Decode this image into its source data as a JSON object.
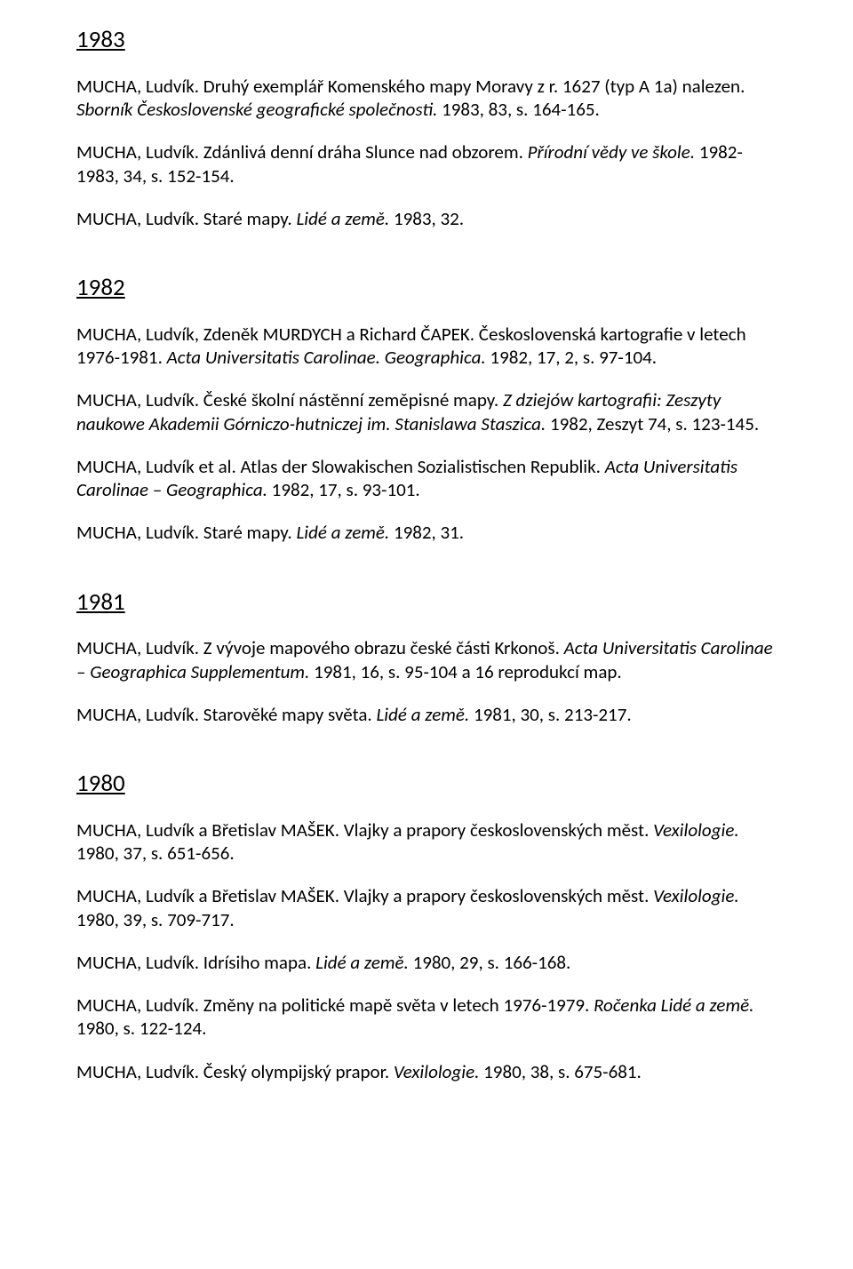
{
  "sections": [
    {
      "year": "1983",
      "entries": [
        {
          "plain1": "MUCHA, Ludvík. Druhý exemplář Komenského mapy Moravy z r. 1627 (typ A 1a) nalezen. ",
          "italic1": "Sborník Československé geografické společnosti.",
          "plain2": " 1983, 83, s. 164-165."
        },
        {
          "plain1": "MUCHA, Ludvík. Zdánlivá denní dráha Slunce nad obzorem. ",
          "italic1": "Přírodní vědy ve škole.",
          "plain2": " 1982-1983, 34, s. 152-154."
        },
        {
          "plain1": "MUCHA, Ludvík. Staré mapy. ",
          "italic1": "Lidé a země.",
          "plain2": " 1983, 32."
        }
      ]
    },
    {
      "year": "1982",
      "entries": [
        {
          "plain1": "MUCHA, Ludvík, Zdeněk MURDYCH a Richard ČAPEK. Československá kartografie v letech 1976-1981. ",
          "italic1": "Acta Universitatis Carolinae. Geographica.",
          "plain2": " 1982, 17, 2, s. 97-104."
        },
        {
          "plain1": "MUCHA, Ludvík. České školní nástěnní zeměpisné mapy. ",
          "italic1": "Z dziejów kartografii: Zeszyty naukowe Akademii Górniczo-hutniczej im. Stanislawa Staszica.",
          "plain2": " 1982, Zeszyt 74, s. 123-145."
        },
        {
          "plain1": "MUCHA, Ludvík et al. Atlas der Slowakischen Sozialistischen Republik. ",
          "italic1": "Acta Universitatis Carolinae – Geographica.",
          "plain2": " 1982, 17, s. 93-101."
        },
        {
          "plain1": "MUCHA, Ludvík. Staré mapy. ",
          "italic1": "Lidé a země.",
          "plain2": " 1982, 31."
        }
      ]
    },
    {
      "year": "1981",
      "entries": [
        {
          "plain1": "MUCHA, Ludvík. Z vývoje mapového obrazu české části Krkonoš. ",
          "italic1": "Acta Universitatis Carolinae – Geographica Supplementum.",
          "plain2": " 1981, 16, s. 95-104 a 16 reprodukcí map."
        },
        {
          "plain1": "MUCHA, Ludvík. Starověké mapy světa. ",
          "italic1": "Lidé a země.",
          "plain2": " 1981, 30, s. 213-217."
        }
      ]
    },
    {
      "year": "1980",
      "entries": [
        {
          "plain1": "MUCHA, Ludvík a Břetislav MAŠEK. Vlajky a prapory československých měst. ",
          "italic1": "Vexilologie.",
          "plain2": " 1980, 37, s. 651-656."
        },
        {
          "plain1": "MUCHA, Ludvík a Břetislav MAŠEK. Vlajky a prapory československých měst. ",
          "italic1": "Vexilologie.",
          "plain2": " 1980, 39, s. 709-717."
        },
        {
          "plain1": "MUCHA, Ludvík. Idrísiho mapa. ",
          "italic1": "Lidé a země.",
          "plain2": " 1980, 29, s. 166-168."
        },
        {
          "plain1": "MUCHA, Ludvík. Změny na politické mapě světa v letech 1976-1979. ",
          "italic1": "Ročenka Lidé a země.",
          "plain2": " 1980, s. 122-124."
        },
        {
          "plain1": "MUCHA, Ludvík. Český olympijský prapor. ",
          "italic1": "Vexilologie.",
          "plain2": " 1980, 38, s. 675-681."
        }
      ]
    }
  ]
}
